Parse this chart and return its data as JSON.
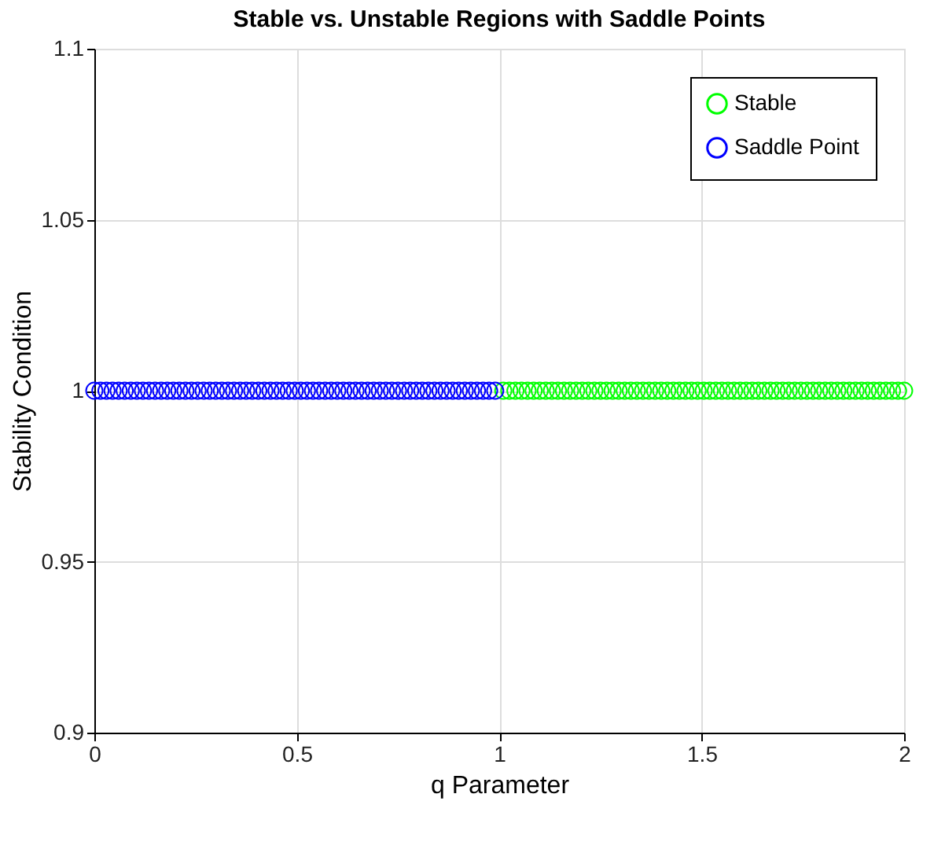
{
  "chart_data": {
    "type": "scatter",
    "title": "Stable vs. Unstable Regions with Saddle Points",
    "xlabel": "q Parameter",
    "ylabel": "Stability Condition",
    "xlim": [
      0,
      2
    ],
    "xticks": [
      0,
      0.5,
      1,
      1.5,
      2
    ],
    "ylim": [
      0.9,
      1.1
    ],
    "yticks": [
      0.9,
      0.95,
      1,
      1.05,
      1.1
    ],
    "grid": true,
    "legend": "top right",
    "marker": "circle",
    "series": [
      {
        "name": "Stable",
        "color": "#00ff00",
        "x": [
          1.01,
          1.025,
          1.04,
          1.055,
          1.07,
          1.085,
          1.1,
          1.115,
          1.13,
          1.145,
          1.16,
          1.175,
          1.19,
          1.205,
          1.22,
          1.235,
          1.25,
          1.265,
          1.28,
          1.295,
          1.31,
          1.325,
          1.34,
          1.355,
          1.37,
          1.385,
          1.4,
          1.415,
          1.43,
          1.445,
          1.46,
          1.475,
          1.49,
          1.505,
          1.52,
          1.535,
          1.55,
          1.565,
          1.58,
          1.595,
          1.61,
          1.625,
          1.64,
          1.655,
          1.67,
          1.685,
          1.7,
          1.715,
          1.73,
          1.745,
          1.76,
          1.775,
          1.79,
          1.805,
          1.82,
          1.835,
          1.85,
          1.865,
          1.88,
          1.895,
          1.91,
          1.925,
          1.94,
          1.955,
          1.97,
          1.985,
          2.0
        ],
        "values": [
          1,
          1,
          1,
          1,
          1,
          1,
          1,
          1,
          1,
          1,
          1,
          1,
          1,
          1,
          1,
          1,
          1,
          1,
          1,
          1,
          1,
          1,
          1,
          1,
          1,
          1,
          1,
          1,
          1,
          1,
          1,
          1,
          1,
          1,
          1,
          1,
          1,
          1,
          1,
          1,
          1,
          1,
          1,
          1,
          1,
          1,
          1,
          1,
          1,
          1,
          1,
          1,
          1,
          1,
          1,
          1,
          1,
          1,
          1,
          1,
          1,
          1,
          1,
          1,
          1,
          1,
          1
        ]
      },
      {
        "name": "Saddle Point",
        "color": "#0000ff",
        "x": [
          0,
          0.015,
          0.03,
          0.045,
          0.06,
          0.075,
          0.09,
          0.105,
          0.12,
          0.135,
          0.15,
          0.165,
          0.18,
          0.195,
          0.21,
          0.225,
          0.24,
          0.255,
          0.27,
          0.285,
          0.3,
          0.315,
          0.33,
          0.345,
          0.36,
          0.375,
          0.39,
          0.405,
          0.42,
          0.435,
          0.45,
          0.465,
          0.48,
          0.495,
          0.51,
          0.525,
          0.54,
          0.555,
          0.57,
          0.585,
          0.6,
          0.615,
          0.63,
          0.645,
          0.66,
          0.675,
          0.69,
          0.705,
          0.72,
          0.735,
          0.75,
          0.765,
          0.78,
          0.795,
          0.81,
          0.825,
          0.84,
          0.855,
          0.87,
          0.885,
          0.9,
          0.915,
          0.93,
          0.945,
          0.96,
          0.975,
          0.99
        ],
        "values": [
          1,
          1,
          1,
          1,
          1,
          1,
          1,
          1,
          1,
          1,
          1,
          1,
          1,
          1,
          1,
          1,
          1,
          1,
          1,
          1,
          1,
          1,
          1,
          1,
          1,
          1,
          1,
          1,
          1,
          1,
          1,
          1,
          1,
          1,
          1,
          1,
          1,
          1,
          1,
          1,
          1,
          1,
          1,
          1,
          1,
          1,
          1,
          1,
          1,
          1,
          1,
          1,
          1,
          1,
          1,
          1,
          1,
          1,
          1,
          1,
          1,
          1,
          1,
          1,
          1,
          1,
          1
        ]
      }
    ]
  }
}
